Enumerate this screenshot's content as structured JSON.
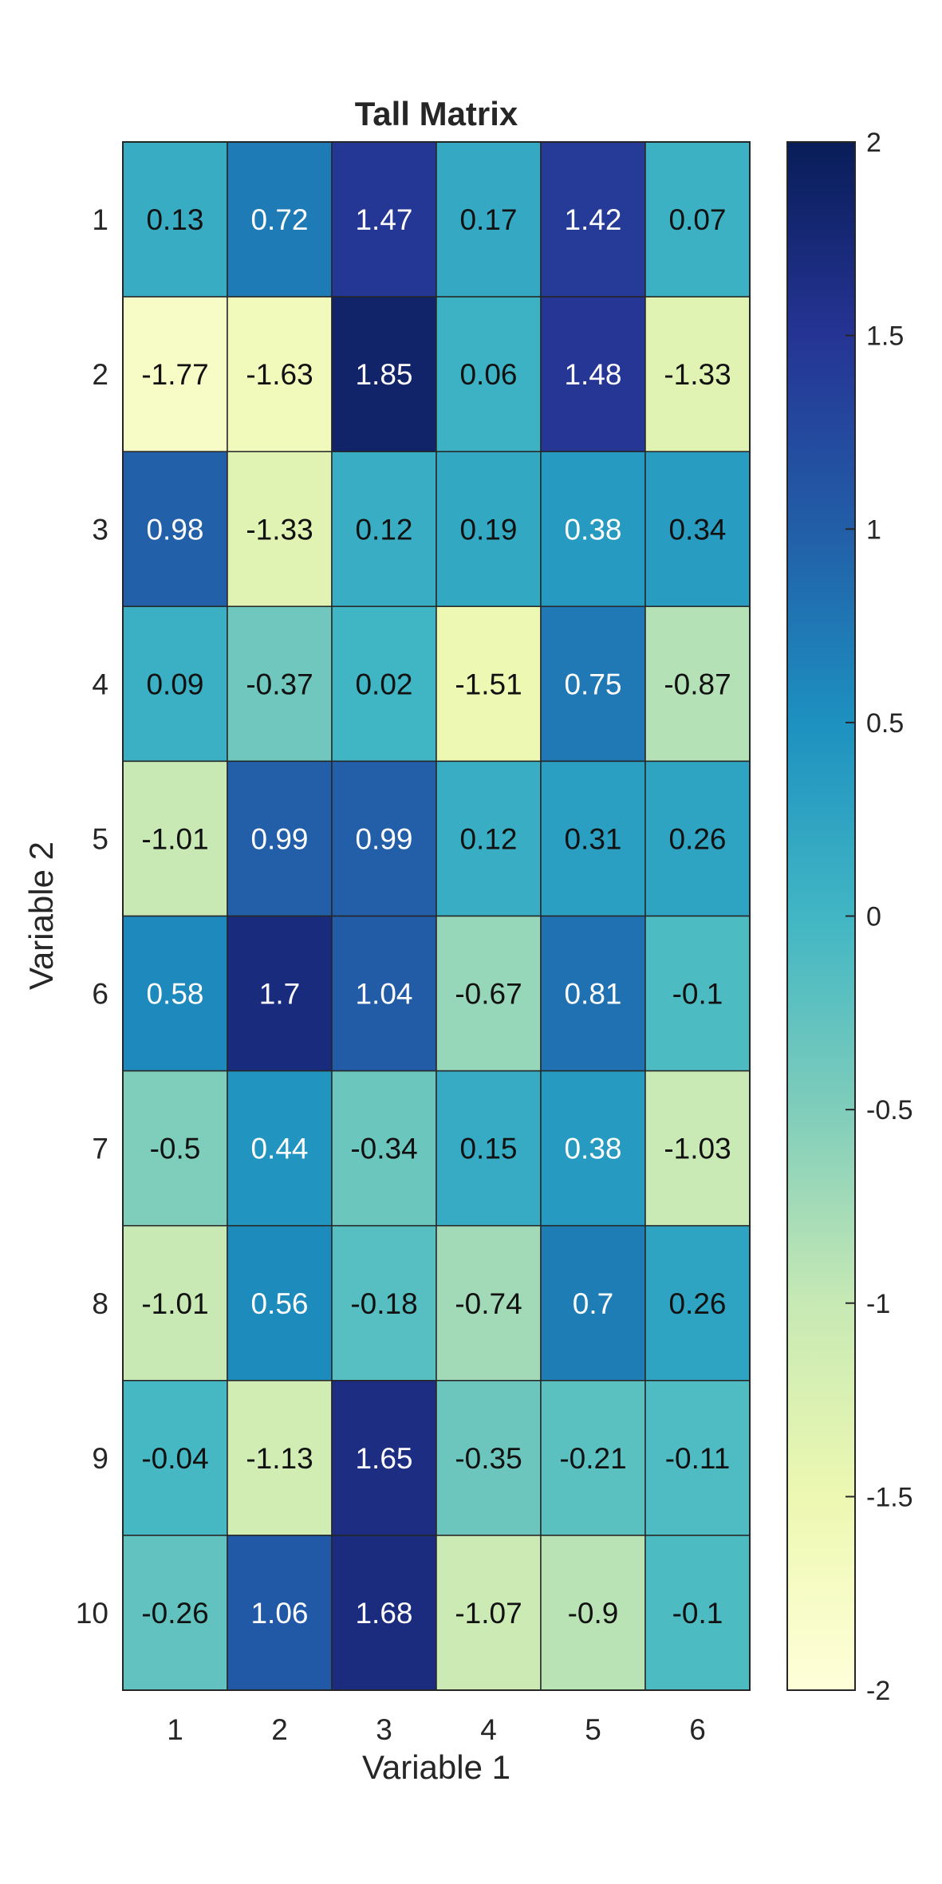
{
  "chart_data": {
    "type": "heatmap",
    "title": "Tall Matrix",
    "xlabel": "Variable 1",
    "ylabel": "Variable 2",
    "x_categories": [
      "1",
      "2",
      "3",
      "4",
      "5",
      "6"
    ],
    "y_categories": [
      "1",
      "2",
      "3",
      "4",
      "5",
      "6",
      "7",
      "8",
      "9",
      "10"
    ],
    "values": [
      [
        0.13,
        0.72,
        1.47,
        0.17,
        1.42,
        0.07
      ],
      [
        -1.77,
        -1.63,
        1.85,
        0.06,
        1.48,
        -1.33
      ],
      [
        0.98,
        -1.33,
        0.12,
        0.19,
        0.38,
        0.34
      ],
      [
        0.09,
        -0.37,
        0.02,
        -1.51,
        0.75,
        -0.87
      ],
      [
        -1.01,
        0.99,
        0.99,
        0.12,
        0.31,
        0.26
      ],
      [
        0.58,
        1.7,
        1.04,
        -0.67,
        0.81,
        -0.1
      ],
      [
        -0.5,
        0.44,
        -0.34,
        0.15,
        0.38,
        -1.03
      ],
      [
        -1.01,
        0.56,
        -0.18,
        -0.74,
        0.7,
        0.26
      ],
      [
        -0.04,
        -1.13,
        1.65,
        -0.35,
        -0.21,
        -0.11
      ],
      [
        -0.26,
        1.06,
        1.68,
        -1.07,
        -0.9,
        -0.1
      ]
    ],
    "colorbar": {
      "range": [
        -2,
        2
      ],
      "ticks": [
        "2",
        "1.5",
        "1",
        "0.5",
        "0",
        "-0.5",
        "-1",
        "-1.5",
        "-2"
      ],
      "tick_values": [
        2,
        1.5,
        1,
        0.5,
        0,
        -0.5,
        -1,
        -1.5,
        -2
      ]
    },
    "colormap": [
      "#ffffd9",
      "#edf8b1",
      "#c7e9b4",
      "#7fcdbb",
      "#41b6c4",
      "#1d91c0",
      "#225ea8",
      "#253494",
      "#081d58"
    ],
    "grid": true,
    "legend": "colorbar-right"
  }
}
